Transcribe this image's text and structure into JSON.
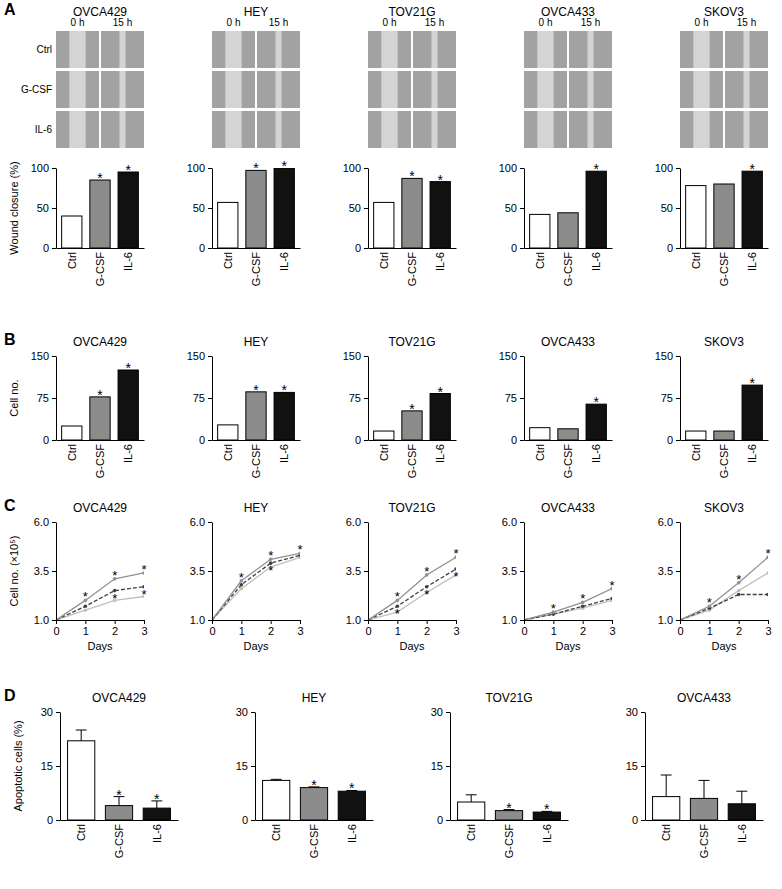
{
  "wound_assay": {
    "column_labels": [
      "0 h",
      "15 h"
    ],
    "row_labels": [
      "Ctrl",
      "G-CSF",
      "IL-6"
    ]
  },
  "chart_data": [
    {
      "panel": "A",
      "type": "bar",
      "title": "OVCA429",
      "ylabel": "Wound closure (%)",
      "categories": [
        "Ctrl",
        "G-CSF",
        "IL-6"
      ],
      "values": [
        40,
        85,
        95
      ],
      "colors": [
        "#ffffff",
        "#8c8c8c",
        "#111111"
      ],
      "ylim": [
        0,
        100
      ],
      "yticks": [
        0,
        50,
        100
      ],
      "annotations": [
        {
          "category": "G-CSF",
          "text": "*"
        },
        {
          "category": "IL-6",
          "text": "*"
        }
      ]
    },
    {
      "panel": "A",
      "type": "bar",
      "title": "HEY",
      "categories": [
        "Ctrl",
        "G-CSF",
        "IL-6"
      ],
      "values": [
        57,
        97,
        100
      ],
      "colors": [
        "#ffffff",
        "#8c8c8c",
        "#111111"
      ],
      "ylim": [
        0,
        100
      ],
      "yticks": [
        0,
        50,
        100
      ],
      "annotations": [
        {
          "category": "G-CSF",
          "text": "*"
        },
        {
          "category": "IL-6",
          "text": "*"
        }
      ]
    },
    {
      "panel": "A",
      "type": "bar",
      "title": "TOV21G",
      "categories": [
        "Ctrl",
        "G-CSF",
        "IL-6"
      ],
      "values": [
        57,
        87,
        83
      ],
      "colors": [
        "#ffffff",
        "#8c8c8c",
        "#111111"
      ],
      "ylim": [
        0,
        100
      ],
      "yticks": [
        0,
        50,
        100
      ],
      "annotations": [
        {
          "category": "G-CSF",
          "text": "*"
        },
        {
          "category": "IL-6",
          "text": "*"
        }
      ]
    },
    {
      "panel": "A",
      "type": "bar",
      "title": "OVCA433",
      "categories": [
        "Ctrl",
        "G-CSF",
        "IL-6"
      ],
      "values": [
        42,
        44,
        96
      ],
      "colors": [
        "#ffffff",
        "#8c8c8c",
        "#111111"
      ],
      "ylim": [
        0,
        100
      ],
      "yticks": [
        0,
        50,
        100
      ],
      "annotations": [
        {
          "category": "IL-6",
          "text": "*"
        }
      ]
    },
    {
      "panel": "A",
      "type": "bar",
      "title": "SKOV3",
      "categories": [
        "Ctrl",
        "G-CSF",
        "IL-6"
      ],
      "values": [
        78,
        80,
        96
      ],
      "colors": [
        "#ffffff",
        "#8c8c8c",
        "#111111"
      ],
      "ylim": [
        0,
        100
      ],
      "yticks": [
        0,
        50,
        100
      ],
      "annotations": [
        {
          "category": "IL-6",
          "text": "*"
        }
      ]
    },
    {
      "panel": "B",
      "type": "bar",
      "title": "OVCA429",
      "ylabel": "Cell no.",
      "categories": [
        "Ctrl",
        "G-CSF",
        "IL-6"
      ],
      "values": [
        25,
        77,
        125
      ],
      "colors": [
        "#ffffff",
        "#8c8c8c",
        "#111111"
      ],
      "ylim": [
        0,
        150
      ],
      "yticks": [
        0,
        75,
        150
      ],
      "annotations": [
        {
          "category": "G-CSF",
          "text": "*"
        },
        {
          "category": "IL-6",
          "text": "*"
        }
      ]
    },
    {
      "panel": "B",
      "type": "bar",
      "title": "HEY",
      "categories": [
        "Ctrl",
        "G-CSF",
        "IL-6"
      ],
      "values": [
        27,
        86,
        85
      ],
      "colors": [
        "#ffffff",
        "#8c8c8c",
        "#111111"
      ],
      "ylim": [
        0,
        150
      ],
      "yticks": [
        0,
        75,
        150
      ],
      "annotations": [
        {
          "category": "G-CSF",
          "text": "*"
        },
        {
          "category": "IL-6",
          "text": "*"
        }
      ]
    },
    {
      "panel": "B",
      "type": "bar",
      "title": "TOV21G",
      "categories": [
        "Ctrl",
        "G-CSF",
        "IL-6"
      ],
      "values": [
        16,
        52,
        83
      ],
      "colors": [
        "#ffffff",
        "#8c8c8c",
        "#111111"
      ],
      "ylim": [
        0,
        150
      ],
      "yticks": [
        0,
        75,
        150
      ],
      "annotations": [
        {
          "category": "G-CSF",
          "text": "*"
        },
        {
          "category": "IL-6",
          "text": "*"
        }
      ]
    },
    {
      "panel": "B",
      "type": "bar",
      "title": "OVCA433",
      "categories": [
        "Ctrl",
        "G-CSF",
        "IL-6"
      ],
      "values": [
        22,
        20,
        64
      ],
      "colors": [
        "#ffffff",
        "#8c8c8c",
        "#111111"
      ],
      "ylim": [
        0,
        150
      ],
      "yticks": [
        0,
        75,
        150
      ],
      "annotations": [
        {
          "category": "IL-6",
          "text": "*"
        }
      ]
    },
    {
      "panel": "B",
      "type": "bar",
      "title": "SKOV3",
      "categories": [
        "Ctrl",
        "G-CSF",
        "IL-6"
      ],
      "values": [
        16,
        16,
        98
      ],
      "colors": [
        "#ffffff",
        "#8c8c8c",
        "#111111"
      ],
      "ylim": [
        0,
        150
      ],
      "yticks": [
        0,
        75,
        150
      ],
      "annotations": [
        {
          "category": "IL-6",
          "text": "*"
        }
      ]
    },
    {
      "panel": "C",
      "type": "line",
      "title": "OVCA429",
      "ylabel": "Cell no. (×10⁵)",
      "xlabel": "Days",
      "x": [
        0,
        1,
        2,
        3
      ],
      "xlim": [
        0,
        3
      ],
      "xticks": [
        0,
        1,
        2,
        3
      ],
      "ylim": [
        1,
        6
      ],
      "yticks": [
        {
          "value": 1,
          "label": "1.0"
        },
        3.5,
        {
          "value": 6,
          "label": "6.0"
        }
      ],
      "series": [
        {
          "color": "#c0c0c0",
          "line_style": "solid",
          "marker": "circle",
          "values": [
            1,
            1.5,
            2.0,
            2.2
          ]
        },
        {
          "color": "#404040",
          "line_style": "dashed",
          "marker": "circle",
          "values": [
            1,
            1.7,
            2.5,
            2.7
          ]
        },
        {
          "color": "#909090",
          "line_style": "solid",
          "marker": "circle",
          "values": [
            1,
            2.0,
            3.1,
            3.4
          ]
        }
      ],
      "annotations": [
        {
          "series": 2,
          "x": 1,
          "text": "*"
        },
        {
          "series": 2,
          "x": 2,
          "text": "*"
        },
        {
          "series": 1,
          "x": 2,
          "text": "*"
        },
        {
          "series": 2,
          "x": 3,
          "text": "*"
        },
        {
          "series": 1,
          "x": 3,
          "text": "*"
        }
      ]
    },
    {
      "panel": "C",
      "type": "line",
      "title": "HEY",
      "xlabel": "Days",
      "x": [
        0,
        1,
        2,
        3
      ],
      "xlim": [
        0,
        3
      ],
      "xticks": [
        0,
        1,
        2,
        3
      ],
      "ylim": [
        1,
        6
      ],
      "yticks": [
        {
          "value": 1,
          "label": "1.0"
        },
        3.5,
        {
          "value": 6,
          "label": "6.0"
        }
      ],
      "series": [
        {
          "color": "#c0c0c0",
          "line_style": "solid",
          "marker": "circle",
          "values": [
            1,
            2.6,
            3.7,
            4.2
          ]
        },
        {
          "color": "#404040",
          "line_style": "dashed",
          "marker": "circle",
          "values": [
            1,
            2.8,
            3.9,
            4.3
          ]
        },
        {
          "color": "#909090",
          "line_style": "solid",
          "marker": "circle",
          "values": [
            1,
            3.0,
            4.1,
            4.4
          ]
        }
      ],
      "annotations": [
        {
          "series": 2,
          "x": 1,
          "text": "*"
        },
        {
          "series": 2,
          "x": 2,
          "text": "*"
        },
        {
          "series": 1,
          "x": 2,
          "text": "*"
        },
        {
          "series": 2,
          "x": 3,
          "text": "*"
        }
      ]
    },
    {
      "panel": "C",
      "type": "line",
      "title": "TOV21G",
      "xlabel": "Days",
      "x": [
        0,
        1,
        2,
        3
      ],
      "xlim": [
        0,
        3
      ],
      "xticks": [
        0,
        1,
        2,
        3
      ],
      "ylim": [
        1,
        6
      ],
      "yticks": [
        {
          "value": 1,
          "label": "1.0"
        },
        3.5,
        {
          "value": 6,
          "label": "6.0"
        }
      ],
      "series": [
        {
          "color": "#c0c0c0",
          "line_style": "solid",
          "marker": "circle",
          "values": [
            1,
            1.4,
            2.4,
            3.3
          ]
        },
        {
          "color": "#404040",
          "line_style": "dashed",
          "marker": "circle",
          "values": [
            1,
            1.7,
            2.7,
            3.6
          ]
        },
        {
          "color": "#909090",
          "line_style": "solid",
          "marker": "circle",
          "values": [
            1,
            2.0,
            3.3,
            4.2
          ]
        }
      ],
      "annotations": [
        {
          "series": 2,
          "x": 1,
          "text": "*"
        },
        {
          "series": 1,
          "x": 1,
          "text": "*"
        },
        {
          "series": 2,
          "x": 2,
          "text": "*"
        },
        {
          "series": 1,
          "x": 2,
          "text": "*"
        },
        {
          "series": 2,
          "x": 3,
          "text": "*"
        },
        {
          "series": 1,
          "x": 3,
          "text": "*"
        }
      ]
    },
    {
      "panel": "C",
      "type": "line",
      "title": "OVCA433",
      "xlabel": "Days",
      "x": [
        0,
        1,
        2,
        3
      ],
      "xlim": [
        0,
        3
      ],
      "xticks": [
        0,
        1,
        2,
        3
      ],
      "ylim": [
        1,
        6
      ],
      "yticks": [
        {
          "value": 1,
          "label": "1.0"
        },
        3.5,
        {
          "value": 6,
          "label": "6.0"
        }
      ],
      "series": [
        {
          "color": "#c0c0c0",
          "line_style": "solid",
          "marker": "circle",
          "values": [
            1,
            1.3,
            1.6,
            2.0
          ]
        },
        {
          "color": "#404040",
          "line_style": "dashed",
          "marker": "circle",
          "values": [
            1,
            1.3,
            1.7,
            2.1
          ]
        },
        {
          "color": "#909090",
          "line_style": "solid",
          "marker": "circle",
          "values": [
            1,
            1.4,
            1.9,
            2.6
          ]
        }
      ],
      "annotations": [
        {
          "series": 2,
          "x": 1,
          "text": "*"
        },
        {
          "series": 2,
          "x": 2,
          "text": "*"
        },
        {
          "series": 2,
          "x": 3,
          "text": "*"
        }
      ]
    },
    {
      "panel": "C",
      "type": "line",
      "title": "SKOV3",
      "xlabel": "Days",
      "x": [
        0,
        1,
        2,
        3
      ],
      "xlim": [
        0,
        3
      ],
      "xticks": [
        0,
        1,
        2,
        3
      ],
      "ylim": [
        1,
        6
      ],
      "yticks": [
        {
          "value": 1,
          "label": "1.0"
        },
        3.5,
        {
          "value": 6,
          "label": "6.0"
        }
      ],
      "series": [
        {
          "color": "#c0c0c0",
          "line_style": "solid",
          "marker": "circle",
          "values": [
            1,
            1.5,
            2.5,
            3.4
          ]
        },
        {
          "color": "#404040",
          "line_style": "dashed",
          "marker": "circle",
          "values": [
            1,
            1.6,
            2.3,
            2.3
          ]
        },
        {
          "color": "#909090",
          "line_style": "solid",
          "marker": "circle",
          "values": [
            1,
            1.7,
            2.9,
            4.2
          ]
        }
      ],
      "annotations": [
        {
          "series": 2,
          "x": 1,
          "text": "*"
        },
        {
          "series": 2,
          "x": 2,
          "text": "*"
        },
        {
          "series": 2,
          "x": 3,
          "text": "*"
        }
      ]
    },
    {
      "panel": "D",
      "type": "bar",
      "title": "OVCA429",
      "ylabel": "Apoptotic cells (%)",
      "categories": [
        "Ctrl",
        "G-CSF",
        "IL-6"
      ],
      "values": [
        22,
        4,
        3.3
      ],
      "errors": [
        3,
        2.5,
        2
      ],
      "colors": [
        "#ffffff",
        "#8c8c8c",
        "#111111"
      ],
      "ylim": [
        0,
        30
      ],
      "yticks": [
        0,
        15,
        30
      ],
      "annotations": [
        {
          "category": "G-CSF",
          "text": "*"
        },
        {
          "category": "IL-6",
          "text": "*"
        }
      ]
    },
    {
      "panel": "D",
      "type": "bar",
      "title": "HEY",
      "categories": [
        "Ctrl",
        "G-CSF",
        "IL-6"
      ],
      "values": [
        11,
        9,
        8
      ],
      "errors": [
        0.3,
        0.2,
        0.2
      ],
      "colors": [
        "#ffffff",
        "#8c8c8c",
        "#111111"
      ],
      "ylim": [
        0,
        30
      ],
      "yticks": [
        0,
        15,
        30
      ],
      "annotations": [
        {
          "category": "G-CSF",
          "text": "*"
        },
        {
          "category": "IL-6",
          "text": "*"
        }
      ]
    },
    {
      "panel": "D",
      "type": "bar",
      "title": "TOV21G",
      "categories": [
        "Ctrl",
        "G-CSF",
        "IL-6"
      ],
      "values": [
        5,
        2.6,
        2.2
      ],
      "errors": [
        2,
        0.3,
        0.2
      ],
      "colors": [
        "#ffffff",
        "#8c8c8c",
        "#111111"
      ],
      "ylim": [
        0,
        30
      ],
      "yticks": [
        0,
        15,
        30
      ],
      "annotations": [
        {
          "category": "G-CSF",
          "text": "*"
        },
        {
          "category": "IL-6",
          "text": "*"
        }
      ]
    },
    {
      "panel": "D",
      "type": "bar",
      "title": "OVCA433",
      "categories": [
        "Ctrl",
        "G-CSF",
        "IL-6"
      ],
      "values": [
        6.5,
        6,
        4.5
      ],
      "errors": [
        6,
        5,
        3.5
      ],
      "colors": [
        "#ffffff",
        "#8c8c8c",
        "#111111"
      ],
      "ylim": [
        0,
        30
      ],
      "yticks": [
        0,
        15,
        30
      ]
    }
  ]
}
